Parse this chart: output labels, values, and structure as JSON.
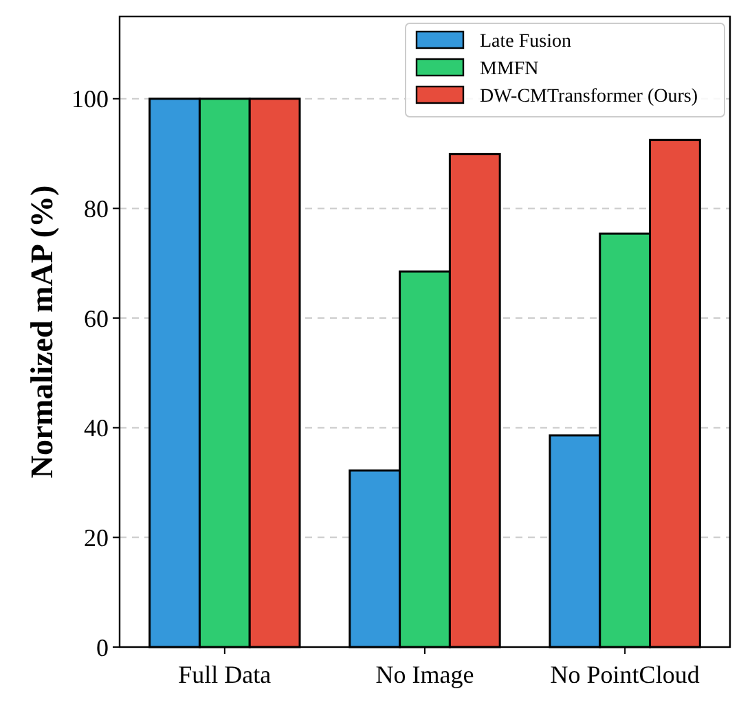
{
  "chart_data": {
    "type": "bar",
    "ylabel": "Normalized mAP (%)",
    "categories": [
      "Full Data",
      "No Image",
      "No PointCloud"
    ],
    "series": [
      {
        "name": "Late Fusion",
        "color": "#3498db",
        "values": [
          100,
          32.2,
          38.6
        ]
      },
      {
        "name": "MMFN",
        "color": "#2ecc71",
        "values": [
          100,
          68.5,
          75.4
        ]
      },
      {
        "name": "DW-CMTransformer (Ours)",
        "color": "#e74c3c",
        "values": [
          100,
          89.9,
          92.5
        ]
      }
    ],
    "ylim": [
      0,
      115
    ],
    "yticks": [
      0,
      20,
      40,
      60,
      80,
      100
    ],
    "grid": "y",
    "legend": "top right"
  }
}
